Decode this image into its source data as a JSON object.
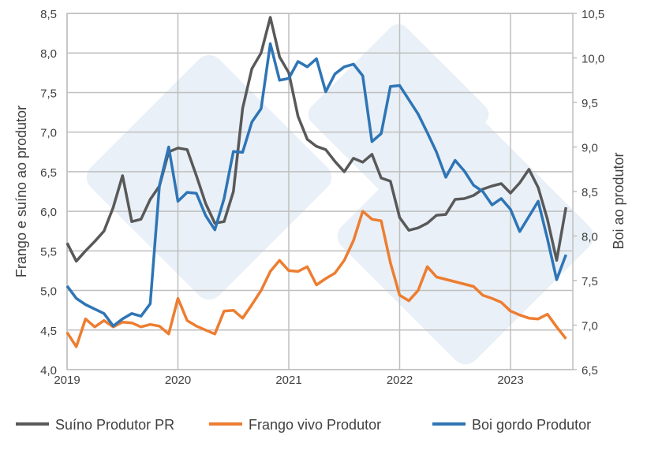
{
  "chart_data": {
    "type": "line",
    "x": [
      "2019-01",
      "2019-02",
      "2019-03",
      "2019-04",
      "2019-05",
      "2019-06",
      "2019-07",
      "2019-08",
      "2019-09",
      "2019-10",
      "2019-11",
      "2019-12",
      "2020-01",
      "2020-02",
      "2020-03",
      "2020-04",
      "2020-05",
      "2020-06",
      "2020-07",
      "2020-08",
      "2020-09",
      "2020-10",
      "2020-11",
      "2020-12",
      "2021-01",
      "2021-02",
      "2021-03",
      "2021-04",
      "2021-05",
      "2021-06",
      "2021-07",
      "2021-08",
      "2021-09",
      "2021-10",
      "2021-11",
      "2021-12",
      "2022-01",
      "2022-02",
      "2022-03",
      "2022-04",
      "2022-05",
      "2022-06",
      "2022-07",
      "2022-08",
      "2022-09",
      "2022-10",
      "2022-11",
      "2022-12",
      "2023-01",
      "2023-02",
      "2023-03",
      "2023-04",
      "2023-05",
      "2023-06",
      "2023-07"
    ],
    "x_tick_labels": [
      "2019",
      "2020",
      "2021",
      "2022",
      "2023"
    ],
    "ylabel_left": "Frango e suíno ao produtor",
    "ylabel_right": "Boi ao produtor",
    "ylim_left": [
      4.0,
      8.5
    ],
    "ylim_right": [
      6.5,
      10.5
    ],
    "y_ticks_left": [
      "4,0",
      "4,5",
      "5,0",
      "5,5",
      "6,0",
      "6,5",
      "7,0",
      "7,5",
      "8,0",
      "8,5"
    ],
    "y_ticks_right": [
      "6,5",
      "7,0",
      "7,5",
      "8,0",
      "8,5",
      "9,0",
      "9,5",
      "10,0",
      "10,5"
    ],
    "grid": true,
    "legend_position": "bottom",
    "series": [
      {
        "name": "Suíno Produtor PR",
        "axis": "left",
        "color": "#595959",
        "values": [
          5.6,
          5.37,
          5.5,
          5.62,
          5.75,
          6.05,
          6.45,
          5.87,
          5.9,
          6.15,
          6.32,
          6.75,
          6.8,
          6.78,
          6.45,
          6.1,
          5.85,
          5.87,
          6.25,
          7.3,
          7.8,
          8.0,
          8.45,
          7.95,
          7.75,
          7.2,
          6.91,
          6.82,
          6.78,
          6.63,
          6.5,
          6.67,
          6.62,
          6.72,
          6.42,
          6.38,
          5.92,
          5.76,
          5.79,
          5.85,
          5.95,
          5.96,
          6.15,
          6.16,
          6.2,
          6.28,
          6.32,
          6.35,
          6.23,
          6.36,
          6.53,
          6.3,
          5.9,
          5.38,
          6.05
        ]
      },
      {
        "name": "Frango vivo Produtor",
        "axis": "left",
        "color": "#ED7D31",
        "values": [
          4.47,
          4.29,
          4.64,
          4.54,
          4.62,
          4.54,
          4.6,
          4.59,
          4.54,
          4.57,
          4.55,
          4.45,
          4.9,
          4.62,
          4.55,
          4.5,
          4.45,
          4.74,
          4.75,
          4.65,
          4.82,
          5.0,
          5.24,
          5.38,
          5.25,
          5.24,
          5.3,
          5.07,
          5.15,
          5.22,
          5.38,
          5.63,
          6.0,
          5.9,
          5.88,
          5.35,
          4.94,
          4.87,
          5.0,
          5.3,
          5.17,
          5.14,
          5.11,
          5.08,
          5.05,
          4.94,
          4.9,
          4.85,
          4.74,
          4.69,
          4.65,
          4.64,
          4.7,
          4.54,
          4.39
        ]
      },
      {
        "name": "Boi gordo Produtor",
        "axis": "right",
        "color": "#2E75B6",
        "values": [
          7.44,
          7.3,
          7.23,
          7.18,
          7.13,
          6.99,
          7.07,
          7.13,
          7.1,
          7.24,
          8.57,
          9.0,
          8.39,
          8.49,
          8.48,
          8.23,
          8.07,
          8.42,
          8.95,
          8.94,
          9.28,
          9.43,
          10.16,
          9.75,
          9.77,
          9.96,
          9.9,
          9.99,
          9.62,
          9.82,
          9.9,
          9.93,
          9.8,
          9.06,
          9.15,
          9.68,
          9.69,
          9.53,
          9.37,
          9.16,
          8.94,
          8.66,
          8.85,
          8.73,
          8.57,
          8.5,
          8.35,
          8.42,
          8.3,
          8.05,
          8.22,
          8.39,
          7.97,
          7.51,
          7.79
        ]
      }
    ]
  }
}
